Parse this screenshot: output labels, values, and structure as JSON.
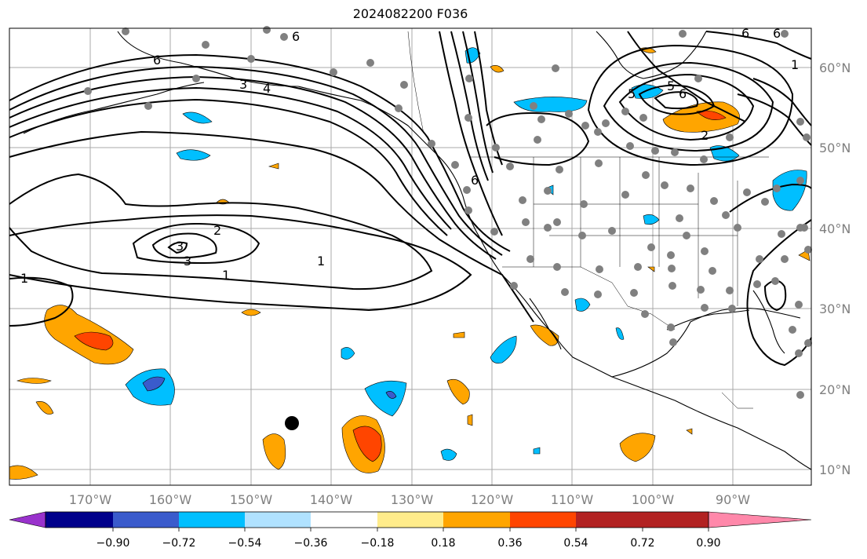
{
  "title": "2024082200 F036",
  "lon_ticks": [
    "170°W",
    "160°W",
    "150°W",
    "140°W",
    "130°W",
    "120°W",
    "110°W",
    "100°W",
    "90°W"
  ],
  "lat_ticks": [
    "60°N",
    "50°N",
    "40°N",
    "30°N",
    "20°N",
    "10°N"
  ],
  "colorbar": {
    "ticks": [
      "−0.90",
      "−0.72",
      "−0.54",
      "−0.36",
      "−0.18",
      "0.18",
      "0.36",
      "0.54",
      "0.72",
      "0.90"
    ],
    "colors": [
      "#9932cc",
      "#00008b",
      "#3a5bcc",
      "#00bfff",
      "#b0e2ff",
      "#ffffff",
      "#ffec8b",
      "#ffa500",
      "#ff4500",
      "#b22222",
      "#ff88aa"
    ]
  },
  "contour_labels": [
    "6",
    "6",
    "3",
    "4",
    "2",
    "3",
    "3",
    "1",
    "1",
    "1",
    "6",
    "5",
    "6",
    "2",
    "5",
    "6",
    "1",
    "6"
  ]
}
